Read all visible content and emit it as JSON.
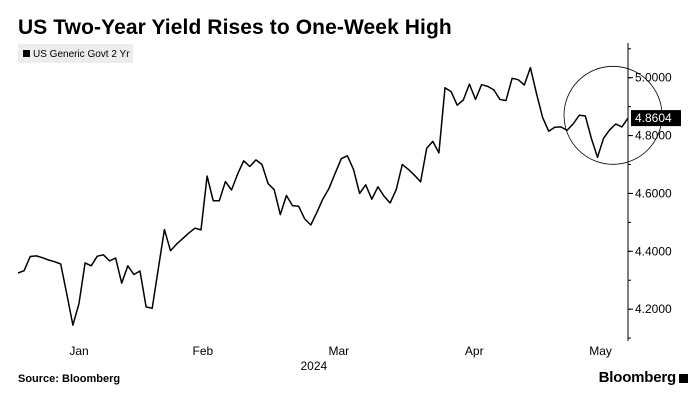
{
  "title": "US Two-Year Yield Rises to One-Week High",
  "source": "Source: Bloomberg",
  "brand": "Bloomberg",
  "chart_data": {
    "type": "line",
    "series": [
      {
        "name": "US Generic Govt 2 Yr",
        "color": "#000000",
        "last_value_label": "4.8604",
        "values": [
          4.325,
          4.333,
          4.382,
          4.384,
          4.378,
          4.37,
          4.364,
          4.356,
          4.252,
          4.145,
          4.22,
          4.36,
          4.35,
          4.383,
          4.388,
          4.367,
          4.377,
          4.29,
          4.35,
          4.32,
          4.332,
          4.208,
          4.203,
          4.34,
          4.475,
          4.402,
          4.425,
          4.444,
          4.463,
          4.48,
          4.474,
          4.66,
          4.575,
          4.575,
          4.641,
          4.612,
          4.667,
          4.713,
          4.693,
          4.716,
          4.7,
          4.634,
          4.613,
          4.527,
          4.593,
          4.558,
          4.556,
          4.512,
          4.491,
          4.535,
          4.582,
          4.618,
          4.67,
          4.72,
          4.73,
          4.683,
          4.6,
          4.63,
          4.58,
          4.623,
          4.591,
          4.567,
          4.613,
          4.7,
          4.683,
          4.663,
          4.64,
          4.756,
          4.78,
          4.74,
          4.965,
          4.952,
          4.905,
          4.923,
          4.978,
          4.925,
          4.976,
          4.97,
          4.958,
          4.925,
          4.921,
          4.998,
          4.993,
          4.975,
          5.035,
          4.945,
          4.863,
          4.815,
          4.829,
          4.83,
          4.818,
          4.84,
          4.87,
          4.868,
          4.79,
          4.725,
          4.791,
          4.82,
          4.84,
          4.83,
          4.8604
        ]
      }
    ],
    "x_tick_labels": [
      "Jan",
      "Feb",
      "Mar",
      "Apr",
      "May"
    ],
    "x_tick_positions": [
      10,
      30.3,
      52.6,
      74.8,
      95.5
    ],
    "year_label": "2024",
    "y_ticks": [
      4.2,
      4.4,
      4.6,
      4.8,
      5.0
    ],
    "y_tick_labels": [
      "4.2000",
      "4.4000",
      "4.6000",
      "4.8000",
      "5.0000"
    ],
    "ylim": [
      4.09,
      5.12
    ],
    "grid": false,
    "y_axis_side": "right",
    "legend": [
      "US Generic Govt 2 Yr"
    ],
    "legend_position": "top-left",
    "annotation": "circle highlighting the latest rise"
  }
}
